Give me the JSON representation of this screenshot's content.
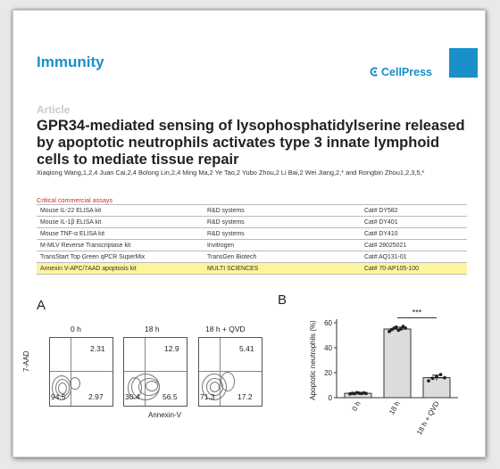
{
  "header": {
    "journal": "Immunity",
    "publisher": "CellPress",
    "article_type": "Article",
    "title": "GPR34-mediated sensing of lysophosphatidylserine released by apoptotic neutrophils activates type 3 innate lymphoid cells to mediate tissue repair",
    "authors": "Xiaqiong Wang,1,2,4 Juan Cai,2,4 Bolong Lin,2,4 Ming Ma,2 Ye Tao,2 Yubo Zhou,2 Li Bai,2 Wei Jiang,2,* and Rongbin Zhou1,2,3,5,*"
  },
  "assays": {
    "heading": "Critical commercial assays",
    "rows": [
      {
        "name": "Mouse IL-22 ELISA kit",
        "source": "R&D systems",
        "cat": "Cat# DY582",
        "highlight": false
      },
      {
        "name": "Mouse IL-1β ELISA kit",
        "source": "R&D systems",
        "cat": "Cat# DY401",
        "highlight": false
      },
      {
        "name": "Mouse TNF-α ELISA kit",
        "source": "R&D systems",
        "cat": "Cat# DY410",
        "highlight": false
      },
      {
        "name": "M-MLV Reverse Transcriptase kit",
        "source": "Invitrogen",
        "cat": "Cat# 28025021",
        "highlight": false
      },
      {
        "name": "TransStart Top Green qPCR SuperMix",
        "source": "TransGen Biotech",
        "cat": "Cat# AQ131-01",
        "highlight": false
      },
      {
        "name": "Annexin V-APC/7AAD apoptosis kit",
        "source": "MULTI SCIENCES",
        "cat": "Cat# 70-AP105-100",
        "highlight": true
      }
    ]
  },
  "panel_a": {
    "letter": "A",
    "y_label": "7-AAD",
    "x_label": "Annexin-V",
    "plots": [
      {
        "title": "0 h",
        "ul": "",
        "ur": "2.31",
        "ll": "94.5",
        "lr": "2.97"
      },
      {
        "title": "18 h",
        "ul": "",
        "ur": "12.9",
        "ll": "30.4",
        "lr": "56.5"
      },
      {
        "title": "18 h + QVD",
        "ul": "",
        "ur": "5.41",
        "ll": "71.3",
        "lr": "17.2"
      }
    ]
  },
  "panel_b": {
    "letter": "B",
    "significance": "***"
  },
  "chart_data": {
    "type": "bar",
    "categories": [
      "0 h",
      "18 h",
      "18 h + QVD"
    ],
    "values": [
      3.5,
      55,
      16
    ],
    "errors": [
      0.5,
      1.5,
      2
    ],
    "points": [
      [
        3,
        3.5,
        3.2,
        4,
        3.6,
        3.3,
        3.8,
        3.4
      ],
      [
        53,
        54.5,
        55.5,
        56.5,
        54,
        55,
        57,
        55.8
      ],
      [
        13.5,
        15.5,
        17,
        18.5,
        16
      ]
    ],
    "ylabel": "Apoptotic neutrophils (%)",
    "ylim": [
      0,
      60
    ],
    "yticks": [
      0,
      20,
      40,
      60
    ],
    "colors": {
      "bar_fill": "#dcdcdc",
      "bar_stroke": "#333333",
      "point": "#222222"
    }
  }
}
